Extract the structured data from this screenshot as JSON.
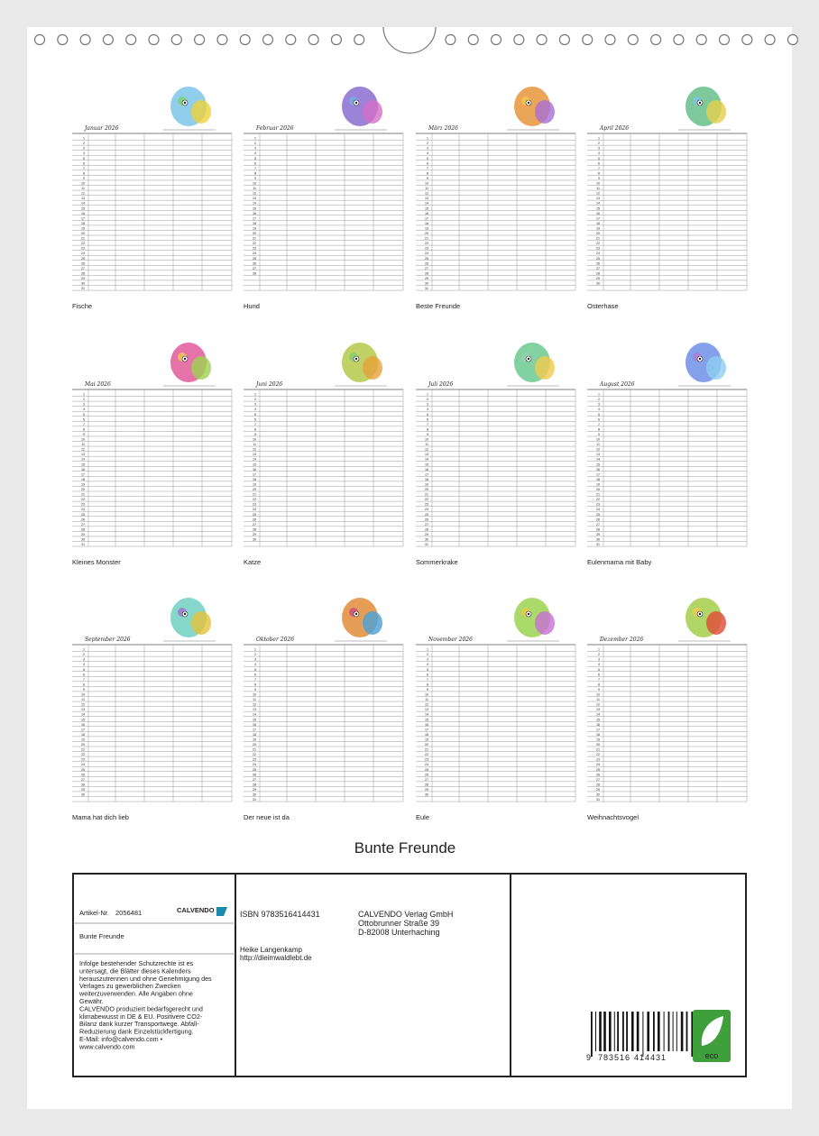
{
  "months": [
    {
      "header": "Januar 2026",
      "caption": "Fische",
      "days": [
        1,
        2,
        3,
        4,
        5,
        6,
        7,
        8,
        9,
        10,
        11,
        12,
        13,
        14,
        15,
        16,
        17,
        18,
        19,
        20,
        21,
        22,
        23,
        24,
        25,
        26,
        27,
        28,
        29,
        30,
        31
      ]
    },
    {
      "header": "Februar 2026",
      "caption": "Hund",
      "days": [
        1,
        2,
        3,
        4,
        5,
        6,
        7,
        8,
        9,
        10,
        11,
        12,
        13,
        14,
        15,
        16,
        17,
        18,
        19,
        20,
        21,
        22,
        23,
        24,
        25,
        26,
        27,
        28
      ]
    },
    {
      "header": "März 2026",
      "caption": "Beste Freunde",
      "days": [
        1,
        2,
        3,
        4,
        5,
        6,
        7,
        8,
        9,
        10,
        11,
        12,
        13,
        14,
        15,
        16,
        17,
        18,
        19,
        20,
        21,
        22,
        23,
        24,
        25,
        26,
        27,
        28,
        29,
        30,
        31
      ]
    },
    {
      "header": "April 2026",
      "caption": "Osterhase",
      "days": [
        1,
        2,
        3,
        4,
        5,
        6,
        7,
        8,
        9,
        10,
        11,
        12,
        13,
        14,
        15,
        16,
        17,
        18,
        19,
        20,
        21,
        22,
        23,
        24,
        25,
        26,
        27,
        28,
        29,
        30
      ]
    },
    {
      "header": "Mai 2026",
      "caption": "Kleines Monster",
      "days": [
        1,
        2,
        3,
        4,
        5,
        6,
        7,
        8,
        9,
        10,
        11,
        12,
        13,
        14,
        15,
        16,
        17,
        18,
        19,
        20,
        21,
        22,
        23,
        24,
        25,
        26,
        27,
        28,
        29,
        30,
        31
      ]
    },
    {
      "header": "Juni 2026",
      "caption": "Katze",
      "days": [
        1,
        2,
        3,
        4,
        5,
        6,
        7,
        8,
        9,
        10,
        11,
        12,
        13,
        14,
        15,
        16,
        17,
        18,
        19,
        20,
        21,
        22,
        23,
        24,
        25,
        26,
        27,
        28,
        29,
        30
      ]
    },
    {
      "header": "Juli 2026",
      "caption": "Sommerkrake",
      "days": [
        1,
        2,
        3,
        4,
        5,
        6,
        7,
        8,
        9,
        10,
        11,
        12,
        13,
        14,
        15,
        16,
        17,
        18,
        19,
        20,
        21,
        22,
        23,
        24,
        25,
        26,
        27,
        28,
        29,
        30,
        31
      ]
    },
    {
      "header": "August 2026",
      "caption": "Eulenmama mit Baby",
      "days": [
        1,
        2,
        3,
        4,
        5,
        6,
        7,
        8,
        9,
        10,
        11,
        12,
        13,
        14,
        15,
        16,
        17,
        18,
        19,
        20,
        21,
        22,
        23,
        24,
        25,
        26,
        27,
        28,
        29,
        30,
        31
      ]
    },
    {
      "header": "September 2026",
      "caption": "Mama hat dich lieb",
      "days": [
        1,
        2,
        3,
        4,
        5,
        6,
        7,
        8,
        9,
        10,
        11,
        12,
        13,
        14,
        15,
        16,
        17,
        18,
        19,
        20,
        21,
        22,
        23,
        24,
        25,
        26,
        27,
        28,
        29,
        30
      ]
    },
    {
      "header": "Oktober 2026",
      "caption": "Der neue ist da",
      "days": [
        1,
        2,
        3,
        4,
        5,
        6,
        7,
        8,
        9,
        10,
        11,
        12,
        13,
        14,
        15,
        16,
        17,
        18,
        19,
        20,
        21,
        22,
        23,
        24,
        25,
        26,
        27,
        28,
        29,
        30,
        31
      ]
    },
    {
      "header": "November 2026",
      "caption": "Eule",
      "days": [
        1,
        2,
        3,
        4,
        5,
        6,
        7,
        8,
        9,
        10,
        11,
        12,
        13,
        14,
        15,
        16,
        17,
        18,
        19,
        20,
        21,
        22,
        23,
        24,
        25,
        26,
        27,
        28,
        29,
        30
      ]
    },
    {
      "header": "Dezember 2026",
      "caption": "Weihnachtsvogel",
      "days": [
        1,
        2,
        3,
        4,
        5,
        6,
        7,
        8,
        9,
        10,
        11,
        12,
        13,
        14,
        15,
        16,
        17,
        18,
        19,
        20,
        21,
        22,
        23,
        24,
        25,
        26,
        27,
        28,
        29,
        30,
        31
      ]
    }
  ],
  "title": "Bunte Freunde",
  "footer": {
    "article_label": "Artikel-Nr.",
    "article_number": "2056481",
    "logo": "CALVENDO",
    "product_title": "Bunte Freunde",
    "notice": [
      "Infolge bestehender Schutzrechte ist es",
      "untersagt, die Blätter dieses Kalenders",
      "herauszutrennen und ohne Genehmigung des",
      "Verlages zu gewerblichen Zwecken",
      "weiterzuverwenden. Alle Angaben ohne",
      "Gewähr.",
      "CALVENDO produziert bedarfsgerecht und",
      "klimabewusst in DE & EU. Positivere CO2-",
      "Bilanz dank kurzer Transportwege. Abfall-",
      "Reduzierung dank Einzelstückfertigung.",
      "E-Mail: info@calvendo.com •",
      "www.calvendo.com"
    ],
    "isbn": "ISBN 9783516414431",
    "author": "Heike Langenkamp",
    "website": "http://dieimwaldlebt.de",
    "publisher": [
      "CALVENDO Verlag GmbH",
      "Ottobrunner Straße 39",
      "D-82008 Unterhaching"
    ],
    "barcode_digits": [
      "9",
      "783516",
      "414431"
    ],
    "eco": "eco"
  }
}
